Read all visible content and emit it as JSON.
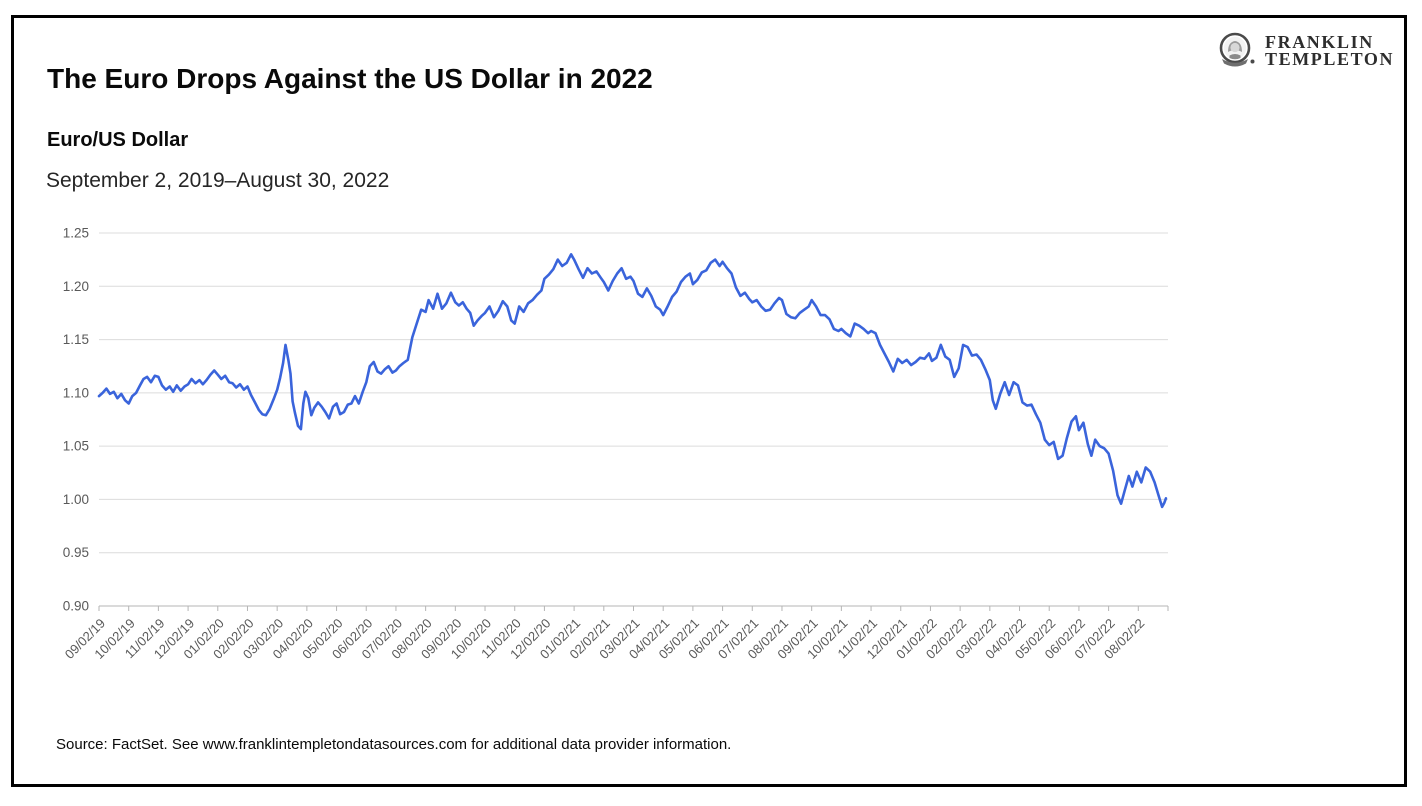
{
  "header": {
    "title": "The Euro Drops Against the US Dollar in 2022",
    "subtitle": "Euro/US Dollar",
    "date_range": "September 2, 2019–August 30, 2022"
  },
  "brand": {
    "line1": "FRANKLIN",
    "line2": "TEMPLETON",
    "icon": "ben-franklin-medallion"
  },
  "footer": {
    "source": "Source: FactSet. See www.franklintempletondatasources.com for additional data provider information."
  },
  "chart_data": {
    "type": "line",
    "title": "Euro/US Dollar",
    "series_name": "EUR/USD exchange rate",
    "xlabel": "",
    "ylabel": "",
    "grid": true,
    "legend": "none",
    "line_color": "#3A64DB",
    "grid_color": "#DCDCDC",
    "axis_color": "#B5B5B5",
    "axis_text_color": "#595959",
    "ylim": [
      0.9,
      1.25
    ],
    "yticks": [
      0.9,
      0.95,
      1.0,
      1.05,
      1.1,
      1.15,
      1.2,
      1.25
    ],
    "ytick_labels": [
      "0.90",
      "0.95",
      "1.00",
      "1.05",
      "1.10",
      "1.15",
      "1.20",
      "1.25"
    ],
    "x_months_total": 36,
    "xtick_labels": [
      "09/02/19",
      "10/02/19",
      "11/02/19",
      "12/02/19",
      "01/02/20",
      "02/02/20",
      "03/02/20",
      "04/02/20",
      "05/02/20",
      "06/02/20",
      "07/02/20",
      "08/02/20",
      "09/02/20",
      "10/02/20",
      "11/02/20",
      "12/02/20",
      "01/02/21",
      "02/02/21",
      "03/02/21",
      "04/02/21",
      "05/02/21",
      "06/02/21",
      "07/02/21",
      "08/02/21",
      "09/02/21",
      "10/02/21",
      "11/02/21",
      "12/02/21",
      "01/02/22",
      "02/02/22",
      "03/02/22",
      "04/02/22",
      "05/02/22",
      "06/02/22",
      "07/02/22",
      "08/02/22"
    ],
    "points": [
      [
        0.0,
        1.097
      ],
      [
        0.12,
        1.1
      ],
      [
        0.25,
        1.104
      ],
      [
        0.37,
        1.099
      ],
      [
        0.5,
        1.101
      ],
      [
        0.62,
        1.095
      ],
      [
        0.75,
        1.099
      ],
      [
        0.88,
        1.093
      ],
      [
        1.0,
        1.09
      ],
      [
        1.12,
        1.097
      ],
      [
        1.25,
        1.1
      ],
      [
        1.38,
        1.107
      ],
      [
        1.5,
        1.113
      ],
      [
        1.62,
        1.115
      ],
      [
        1.75,
        1.11
      ],
      [
        1.88,
        1.116
      ],
      [
        2.0,
        1.115
      ],
      [
        2.12,
        1.107
      ],
      [
        2.25,
        1.103
      ],
      [
        2.38,
        1.106
      ],
      [
        2.5,
        1.101
      ],
      [
        2.62,
        1.107
      ],
      [
        2.75,
        1.102
      ],
      [
        2.88,
        1.106
      ],
      [
        3.0,
        1.108
      ],
      [
        3.12,
        1.113
      ],
      [
        3.25,
        1.109
      ],
      [
        3.38,
        1.112
      ],
      [
        3.5,
        1.108
      ],
      [
        3.62,
        1.112
      ],
      [
        3.75,
        1.117
      ],
      [
        3.88,
        1.121
      ],
      [
        4.0,
        1.117
      ],
      [
        4.12,
        1.113
      ],
      [
        4.25,
        1.116
      ],
      [
        4.38,
        1.11
      ],
      [
        4.5,
        1.109
      ],
      [
        4.62,
        1.105
      ],
      [
        4.75,
        1.108
      ],
      [
        4.88,
        1.103
      ],
      [
        5.0,
        1.106
      ],
      [
        5.12,
        1.098
      ],
      [
        5.25,
        1.091
      ],
      [
        5.38,
        1.084
      ],
      [
        5.5,
        1.08
      ],
      [
        5.62,
        1.079
      ],
      [
        5.75,
        1.085
      ],
      [
        5.88,
        1.094
      ],
      [
        6.0,
        1.103
      ],
      [
        6.1,
        1.114
      ],
      [
        6.2,
        1.128
      ],
      [
        6.28,
        1.145
      ],
      [
        6.38,
        1.13
      ],
      [
        6.45,
        1.118
      ],
      [
        6.52,
        1.092
      ],
      [
        6.6,
        1.081
      ],
      [
        6.7,
        1.069
      ],
      [
        6.8,
        1.066
      ],
      [
        6.88,
        1.09
      ],
      [
        6.95,
        1.101
      ],
      [
        7.05,
        1.095
      ],
      [
        7.15,
        1.079
      ],
      [
        7.25,
        1.086
      ],
      [
        7.38,
        1.091
      ],
      [
        7.5,
        1.087
      ],
      [
        7.62,
        1.082
      ],
      [
        7.75,
        1.076
      ],
      [
        7.88,
        1.087
      ],
      [
        8.0,
        1.09
      ],
      [
        8.12,
        1.08
      ],
      [
        8.25,
        1.082
      ],
      [
        8.38,
        1.089
      ],
      [
        8.5,
        1.09
      ],
      [
        8.62,
        1.097
      ],
      [
        8.75,
        1.09
      ],
      [
        8.88,
        1.101
      ],
      [
        9.0,
        1.11
      ],
      [
        9.12,
        1.125
      ],
      [
        9.25,
        1.129
      ],
      [
        9.38,
        1.12
      ],
      [
        9.5,
        1.118
      ],
      [
        9.62,
        1.122
      ],
      [
        9.75,
        1.125
      ],
      [
        9.88,
        1.119
      ],
      [
        10.0,
        1.121
      ],
      [
        10.12,
        1.125
      ],
      [
        10.25,
        1.128
      ],
      [
        10.4,
        1.131
      ],
      [
        10.55,
        1.152
      ],
      [
        10.7,
        1.165
      ],
      [
        10.85,
        1.178
      ],
      [
        11.0,
        1.176
      ],
      [
        11.1,
        1.187
      ],
      [
        11.25,
        1.179
      ],
      [
        11.4,
        1.193
      ],
      [
        11.55,
        1.179
      ],
      [
        11.7,
        1.184
      ],
      [
        11.85,
        1.194
      ],
      [
        12.0,
        1.185
      ],
      [
        12.12,
        1.182
      ],
      [
        12.25,
        1.185
      ],
      [
        12.38,
        1.179
      ],
      [
        12.5,
        1.175
      ],
      [
        12.62,
        1.163
      ],
      [
        12.75,
        1.168
      ],
      [
        12.88,
        1.172
      ],
      [
        13.0,
        1.175
      ],
      [
        13.15,
        1.181
      ],
      [
        13.3,
        1.171
      ],
      [
        13.45,
        1.177
      ],
      [
        13.6,
        1.186
      ],
      [
        13.75,
        1.181
      ],
      [
        13.88,
        1.168
      ],
      [
        14.0,
        1.165
      ],
      [
        14.15,
        1.181
      ],
      [
        14.3,
        1.176
      ],
      [
        14.45,
        1.184
      ],
      [
        14.6,
        1.187
      ],
      [
        14.75,
        1.192
      ],
      [
        14.9,
        1.196
      ],
      [
        15.0,
        1.207
      ],
      [
        15.15,
        1.211
      ],
      [
        15.3,
        1.216
      ],
      [
        15.45,
        1.225
      ],
      [
        15.6,
        1.219
      ],
      [
        15.75,
        1.222
      ],
      [
        15.9,
        1.23
      ],
      [
        16.0,
        1.225
      ],
      [
        16.15,
        1.216
      ],
      [
        16.3,
        1.208
      ],
      [
        16.45,
        1.217
      ],
      [
        16.6,
        1.212
      ],
      [
        16.75,
        1.214
      ],
      [
        16.9,
        1.208
      ],
      [
        17.0,
        1.204
      ],
      [
        17.15,
        1.196
      ],
      [
        17.3,
        1.205
      ],
      [
        17.45,
        1.212
      ],
      [
        17.6,
        1.217
      ],
      [
        17.75,
        1.207
      ],
      [
        17.9,
        1.209
      ],
      [
        18.0,
        1.205
      ],
      [
        18.15,
        1.193
      ],
      [
        18.3,
        1.19
      ],
      [
        18.45,
        1.198
      ],
      [
        18.6,
        1.191
      ],
      [
        18.75,
        1.181
      ],
      [
        18.9,
        1.178
      ],
      [
        19.0,
        1.173
      ],
      [
        19.15,
        1.181
      ],
      [
        19.3,
        1.19
      ],
      [
        19.45,
        1.195
      ],
      [
        19.6,
        1.204
      ],
      [
        19.75,
        1.209
      ],
      [
        19.9,
        1.212
      ],
      [
        20.0,
        1.202
      ],
      [
        20.15,
        1.206
      ],
      [
        20.3,
        1.213
      ],
      [
        20.45,
        1.215
      ],
      [
        20.6,
        1.222
      ],
      [
        20.75,
        1.225
      ],
      [
        20.9,
        1.219
      ],
      [
        21.0,
        1.223
      ],
      [
        21.15,
        1.217
      ],
      [
        21.3,
        1.212
      ],
      [
        21.45,
        1.199
      ],
      [
        21.6,
        1.191
      ],
      [
        21.75,
        1.194
      ],
      [
        21.9,
        1.188
      ],
      [
        22.0,
        1.185
      ],
      [
        22.15,
        1.187
      ],
      [
        22.3,
        1.181
      ],
      [
        22.45,
        1.177
      ],
      [
        22.6,
        1.178
      ],
      [
        22.75,
        1.184
      ],
      [
        22.9,
        1.189
      ],
      [
        23.0,
        1.187
      ],
      [
        23.15,
        1.174
      ],
      [
        23.3,
        1.171
      ],
      [
        23.45,
        1.17
      ],
      [
        23.6,
        1.175
      ],
      [
        23.75,
        1.178
      ],
      [
        23.9,
        1.181
      ],
      [
        24.0,
        1.187
      ],
      [
        24.15,
        1.181
      ],
      [
        24.3,
        1.173
      ],
      [
        24.45,
        1.173
      ],
      [
        24.6,
        1.169
      ],
      [
        24.75,
        1.16
      ],
      [
        24.9,
        1.158
      ],
      [
        25.0,
        1.16
      ],
      [
        25.15,
        1.156
      ],
      [
        25.3,
        1.153
      ],
      [
        25.45,
        1.165
      ],
      [
        25.6,
        1.163
      ],
      [
        25.75,
        1.16
      ],
      [
        25.9,
        1.156
      ],
      [
        26.0,
        1.158
      ],
      [
        26.15,
        1.156
      ],
      [
        26.3,
        1.145
      ],
      [
        26.45,
        1.137
      ],
      [
        26.6,
        1.129
      ],
      [
        26.75,
        1.12
      ],
      [
        26.9,
        1.132
      ],
      [
        27.05,
        1.128
      ],
      [
        27.2,
        1.131
      ],
      [
        27.35,
        1.126
      ],
      [
        27.5,
        1.129
      ],
      [
        27.65,
        1.133
      ],
      [
        27.8,
        1.132
      ],
      [
        27.95,
        1.137
      ],
      [
        28.05,
        1.13
      ],
      [
        28.2,
        1.133
      ],
      [
        28.35,
        1.145
      ],
      [
        28.5,
        1.134
      ],
      [
        28.65,
        1.131
      ],
      [
        28.8,
        1.115
      ],
      [
        28.95,
        1.123
      ],
      [
        29.1,
        1.145
      ],
      [
        29.25,
        1.143
      ],
      [
        29.4,
        1.135
      ],
      [
        29.55,
        1.136
      ],
      [
        29.7,
        1.131
      ],
      [
        29.85,
        1.122
      ],
      [
        30.0,
        1.112
      ],
      [
        30.1,
        1.093
      ],
      [
        30.2,
        1.085
      ],
      [
        30.35,
        1.099
      ],
      [
        30.5,
        1.11
      ],
      [
        30.65,
        1.098
      ],
      [
        30.8,
        1.11
      ],
      [
        30.95,
        1.107
      ],
      [
        31.1,
        1.091
      ],
      [
        31.25,
        1.088
      ],
      [
        31.4,
        1.089
      ],
      [
        31.55,
        1.08
      ],
      [
        31.7,
        1.072
      ],
      [
        31.85,
        1.056
      ],
      [
        32.0,
        1.051
      ],
      [
        32.15,
        1.054
      ],
      [
        32.3,
        1.038
      ],
      [
        32.45,
        1.041
      ],
      [
        32.6,
        1.058
      ],
      [
        32.75,
        1.073
      ],
      [
        32.9,
        1.078
      ],
      [
        33.0,
        1.065
      ],
      [
        33.15,
        1.072
      ],
      [
        33.3,
        1.052
      ],
      [
        33.42,
        1.041
      ],
      [
        33.55,
        1.056
      ],
      [
        33.7,
        1.05
      ],
      [
        33.85,
        1.048
      ],
      [
        34.0,
        1.043
      ],
      [
        34.15,
        1.027
      ],
      [
        34.3,
        1.004
      ],
      [
        34.42,
        0.996
      ],
      [
        34.55,
        1.009
      ],
      [
        34.68,
        1.022
      ],
      [
        34.8,
        1.012
      ],
      [
        34.95,
        1.026
      ],
      [
        35.1,
        1.016
      ],
      [
        35.25,
        1.03
      ],
      [
        35.4,
        1.026
      ],
      [
        35.55,
        1.016
      ],
      [
        35.68,
        1.004
      ],
      [
        35.8,
        0.993
      ],
      [
        35.88,
        0.997
      ],
      [
        35.93,
        1.001
      ]
    ]
  }
}
